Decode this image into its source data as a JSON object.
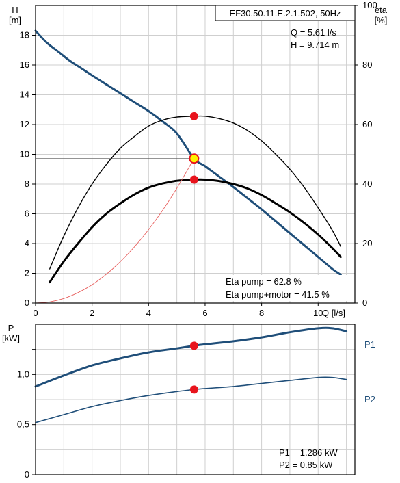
{
  "chart_data": [
    {
      "type": "line",
      "title": "EF30.50.11.E.2.1.502, 50Hz",
      "xlabel": "Q [l/s]",
      "ylabel": "H\n[m]",
      "ylabel_right": "eta\n[%]",
      "xlim": [
        0,
        11.3
      ],
      "ylim": [
        0,
        20
      ],
      "ylim_right": [
        0,
        100
      ],
      "x_ticks": [
        "0",
        "2",
        "4",
        "6",
        "8",
        "10"
      ],
      "y_ticks": [
        "0",
        "2",
        "4",
        "6",
        "8",
        "10",
        "12",
        "14",
        "16",
        "18"
      ],
      "y_right_ticks": [
        "0",
        "20",
        "40",
        "60",
        "80",
        "100"
      ],
      "grid": true,
      "duty_point": {
        "q_label": "Q = 5.61 l/s",
        "h_label": "H = 9.714 m",
        "q": 5.61,
        "h": 9.714
      },
      "efficiency_labels": {
        "eta_pump": "Eta pump = 62.8 %",
        "eta_total": "Eta pump+motor = 41.5 %"
      },
      "series": [
        {
          "key": "H",
          "color": "#1f4e79",
          "x": [
            0,
            0.4,
            0.8,
            1.2,
            1.6,
            2,
            2.5,
            3,
            3.5,
            4,
            4.5,
            5,
            5.61,
            6,
            6.5,
            7,
            7.5,
            8,
            8.5,
            9,
            9.5,
            10,
            10.5,
            10.8
          ],
          "y": [
            18.3,
            17.5,
            16.9,
            16.3,
            15.8,
            15.3,
            14.7,
            14.1,
            13.5,
            12.9,
            12.2,
            11.4,
            9.714,
            9.2,
            8.5,
            7.8,
            7.05,
            6.3,
            5.5,
            4.7,
            3.9,
            3.1,
            2.3,
            1.9
          ]
        },
        {
          "key": "eta_pump",
          "color": "#000000",
          "x": [
            0.5,
            1,
            1.5,
            2,
            2.5,
            3,
            3.5,
            4,
            4.5,
            5,
            5.61,
            6,
            6.5,
            7,
            7.5,
            8,
            8.5,
            9,
            9.5,
            10,
            10.5,
            10.8
          ],
          "y": [
            11.5,
            22.5,
            32,
            40,
            46.5,
            52,
            56,
            59.5,
            61.5,
            62.5,
            62.8,
            62.8,
            62,
            60.5,
            58,
            54.5,
            50,
            45,
            39,
            32,
            24.5,
            19
          ]
        },
        {
          "key": "eta_total",
          "color": "#000000",
          "x": [
            0.5,
            1,
            1.5,
            2,
            2.5,
            3,
            3.5,
            4,
            4.5,
            5,
            5.61,
            6,
            6.5,
            7,
            7.5,
            8,
            8.5,
            9,
            9.5,
            10,
            10.5,
            10.8
          ],
          "y": [
            7,
            14,
            20,
            25.5,
            30,
            33.5,
            36.5,
            38.8,
            40.2,
            41.1,
            41.5,
            41.5,
            41,
            40,
            38.5,
            36.3,
            33.5,
            30.5,
            27,
            23,
            18.5,
            15.5
          ]
        },
        {
          "key": "system_curve",
          "color": "#e8605f",
          "x": [
            0,
            0.5,
            1,
            1.5,
            2,
            2.5,
            3,
            3.5,
            4,
            4.5,
            5,
            5.61
          ],
          "y": [
            0,
            0.08,
            0.31,
            0.7,
            1.23,
            1.93,
            2.78,
            3.78,
            4.94,
            6.25,
            7.72,
            9.714
          ]
        }
      ]
    },
    {
      "type": "line",
      "ylabel": "P\n[kW]",
      "xlim": [
        0,
        11.3
      ],
      "ylim": [
        0,
        1.5
      ],
      "y_ticks": [
        "0",
        "0,5",
        "1,0"
      ],
      "grid": true,
      "power_labels": {
        "p1": "P1 = 1.286 kW",
        "p2": "P2 = 0.85 kW"
      },
      "series": [
        {
          "name": "P1",
          "color": "#1f4e79",
          "x": [
            0,
            1,
            2,
            3,
            4,
            5,
            5.61,
            6,
            7,
            8,
            9,
            10,
            10.5,
            11
          ],
          "y": [
            0.88,
            0.99,
            1.09,
            1.16,
            1.22,
            1.26,
            1.286,
            1.3,
            1.33,
            1.37,
            1.42,
            1.46,
            1.46,
            1.43
          ]
        },
        {
          "name": "P2",
          "color": "#1f4e79",
          "x": [
            0,
            1,
            2,
            3,
            4,
            5,
            5.61,
            6,
            7,
            8,
            9,
            10,
            10.5,
            11
          ],
          "y": [
            0.52,
            0.6,
            0.68,
            0.74,
            0.79,
            0.83,
            0.85,
            0.86,
            0.88,
            0.91,
            0.94,
            0.97,
            0.97,
            0.95
          ]
        }
      ]
    }
  ]
}
